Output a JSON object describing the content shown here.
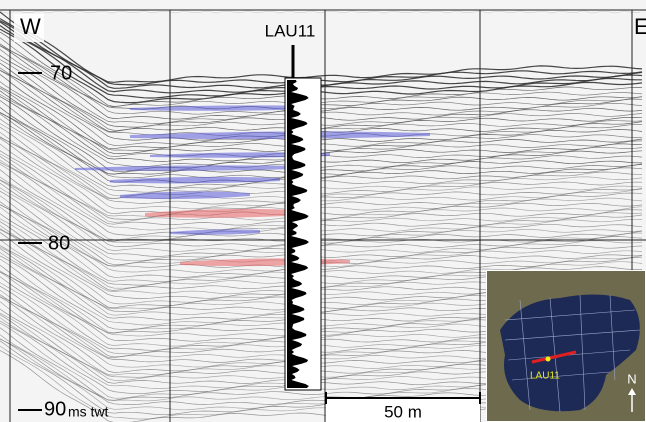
{
  "profile": {
    "west_label": "W",
    "east_label": "E",
    "core_label": "LAU11",
    "depth_labels": [
      "70",
      "80",
      "90"
    ],
    "depth_unit": "ms twt",
    "scale_bar": "50 m"
  },
  "inset_map": {
    "core_label": "LAU11",
    "north_label": "N"
  }
}
